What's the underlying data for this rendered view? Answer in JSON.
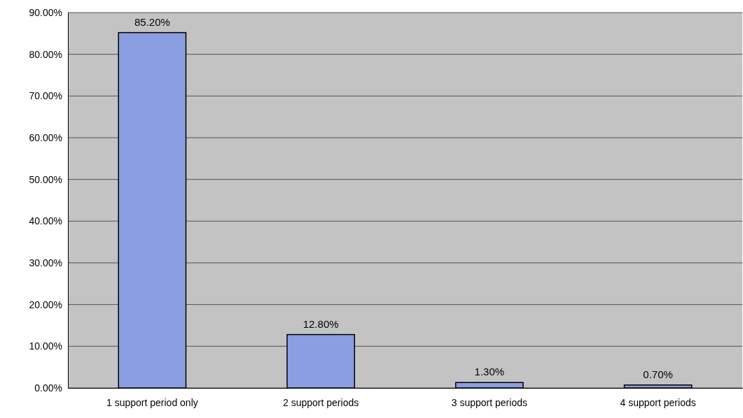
{
  "chart_data": {
    "type": "bar",
    "categories": [
      "1 support period only",
      "2 support periods",
      "3 support periods",
      "4 support periods"
    ],
    "values": [
      85.2,
      12.8,
      1.3,
      0.7
    ],
    "value_labels": [
      "85.20%",
      "12.80%",
      "1.30%",
      "0.70%"
    ],
    "color": "#8c9ee2",
    "ylim": [
      0,
      90
    ],
    "yticks": [
      {
        "value": 0,
        "label": "0.00%"
      },
      {
        "value": 10,
        "label": "10.00%"
      },
      {
        "value": 20,
        "label": "20.00%"
      },
      {
        "value": 30,
        "label": "30.00%"
      },
      {
        "value": 40,
        "label": "40.00%"
      },
      {
        "value": 50,
        "label": "50.00%"
      },
      {
        "value": 60,
        "label": "60.00%"
      },
      {
        "value": 70,
        "label": "70.00%"
      },
      {
        "value": 80,
        "label": "80.00%"
      },
      {
        "value": 90,
        "label": "90.00%"
      }
    ],
    "grid": "y"
  }
}
